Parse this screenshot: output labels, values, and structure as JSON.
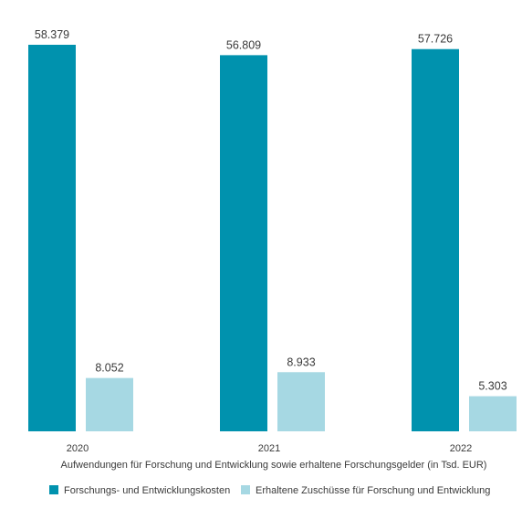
{
  "chart_data": {
    "type": "bar",
    "categories": [
      "2020",
      "2021",
      "2022"
    ],
    "series": [
      {
        "name": "Forschungs- und Entwicklungskosten",
        "values": [
          58379,
          56809,
          57726
        ],
        "labels": [
          "58.379",
          "56.809",
          "57.726"
        ],
        "color": "#0092AE"
      },
      {
        "name": "Erhaltene Zuschüsse für Forschung und Entwicklung",
        "values": [
          8052,
          8933,
          5303
        ],
        "labels": [
          "8.052",
          "8.933",
          "5.303"
        ],
        "color": "#A6D8E3"
      }
    ],
    "xlabel": "Aufwendungen für Forschung und Entwicklung sowie erhaltene Forschungsgelder (in Tsd. EUR)",
    "ylim": [
      0,
      58379
    ],
    "grid": false,
    "legend": "bottom"
  }
}
